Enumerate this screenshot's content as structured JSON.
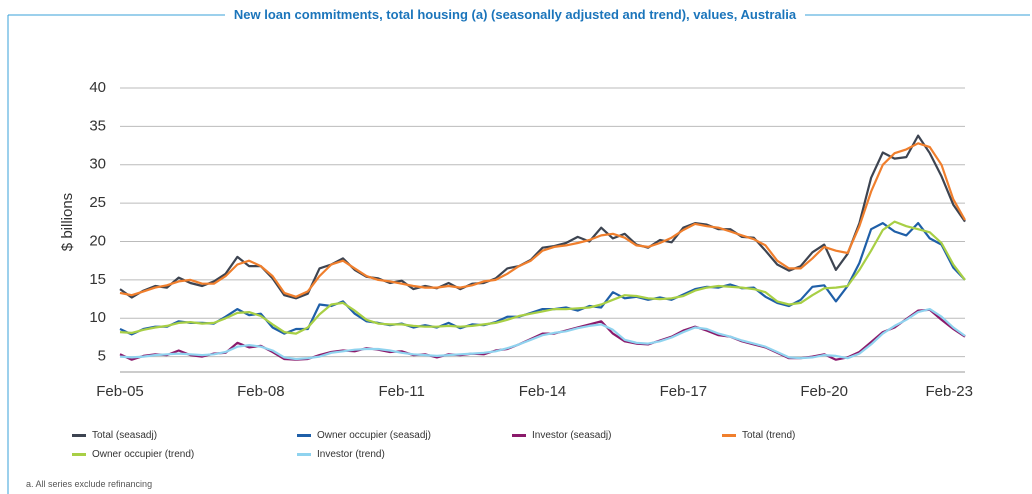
{
  "chart_data": {
    "type": "line",
    "title": "New loan commitments, total housing (a) (seasonally adjusted and trend), values, Australia",
    "y_label": "$ billions",
    "footnote": "a. All series exclude refinancing",
    "categories": [
      "Feb-05",
      null,
      null,
      null,
      null,
      null,
      null,
      null,
      null,
      null,
      null,
      null,
      "Feb-08",
      null,
      null,
      null,
      null,
      null,
      null,
      null,
      null,
      null,
      null,
      null,
      "Feb-11",
      null,
      null,
      null,
      null,
      null,
      null,
      null,
      null,
      null,
      null,
      null,
      "Feb-14",
      null,
      null,
      null,
      null,
      null,
      null,
      null,
      null,
      null,
      null,
      null,
      "Feb-17",
      null,
      null,
      null,
      null,
      null,
      null,
      null,
      null,
      null,
      null,
      null,
      "Feb-20",
      null,
      null,
      null,
      null,
      null,
      null,
      null,
      null,
      null,
      null,
      null,
      "Feb-23"
    ],
    "ylim": [
      3,
      40
    ],
    "yticks": [
      5,
      10,
      15,
      20,
      25,
      30,
      35,
      40
    ],
    "grid": true,
    "series": [
      {
        "name": "Total (seasadj)",
        "color": "#3d4451",
        "values": [
          13.8,
          12.7,
          13.6,
          14.2,
          14.0,
          15.3,
          14.6,
          14.2,
          14.8,
          15.8,
          18.0,
          16.8,
          16.8,
          15.2,
          13.0,
          12.6,
          13.2,
          16.5,
          17.0,
          17.8,
          16.3,
          15.4,
          15.2,
          14.6,
          14.9,
          13.8,
          14.2,
          13.9,
          14.6,
          13.8,
          14.5,
          14.6,
          15.2,
          16.5,
          16.8,
          17.6,
          19.2,
          19.4,
          19.8,
          20.6,
          20.0,
          21.8,
          20.4,
          21.0,
          19.6,
          19.2,
          20.2,
          19.9,
          21.8,
          22.4,
          22.2,
          21.6,
          21.6,
          20.6,
          20.5,
          18.8,
          17.0,
          16.2,
          16.8,
          18.6,
          19.6,
          16.3,
          18.4,
          22.4,
          28.3,
          31.6,
          30.8,
          31.0,
          33.8,
          31.5,
          28.5,
          24.8,
          22.6
        ]
      },
      {
        "name": "Owner occupier (seasadj)",
        "color": "#1f5fa8",
        "values": [
          8.6,
          7.9,
          8.6,
          8.9,
          8.9,
          9.6,
          9.4,
          9.4,
          9.3,
          10.2,
          11.2,
          10.4,
          10.6,
          8.8,
          8.0,
          8.6,
          8.6,
          11.8,
          11.6,
          12.2,
          10.6,
          9.6,
          9.4,
          9.1,
          9.3,
          8.8,
          9.1,
          8.8,
          9.4,
          8.7,
          9.2,
          9.1,
          9.5,
          10.2,
          10.2,
          10.7,
          11.2,
          11.2,
          11.4,
          11.0,
          11.6,
          11.4,
          13.4,
          12.6,
          12.8,
          12.4,
          12.7,
          12.4,
          13.1,
          13.8,
          14.1,
          14.0,
          14.4,
          13.9,
          14.0,
          12.8,
          12.0,
          11.6,
          12.4,
          14.1,
          14.3,
          12.2,
          14.2,
          17.2,
          21.6,
          22.4,
          21.3,
          20.8,
          22.4,
          20.4,
          19.6,
          16.6,
          15.0
        ]
      },
      {
        "name": "Investor (seasadj)",
        "color": "#8b1a6b",
        "values": [
          5.3,
          4.6,
          5.1,
          5.3,
          5.2,
          5.8,
          5.2,
          5.0,
          5.4,
          5.5,
          6.8,
          6.2,
          6.4,
          5.6,
          4.7,
          4.6,
          4.7,
          5.2,
          5.6,
          5.8,
          5.7,
          6.1,
          5.9,
          5.6,
          5.7,
          5.2,
          5.3,
          4.9,
          5.3,
          5.2,
          5.4,
          5.3,
          5.8,
          6.0,
          6.6,
          7.3,
          8.0,
          8.0,
          8.4,
          8.8,
          9.2,
          9.6,
          8.0,
          7.0,
          6.7,
          6.6,
          7.1,
          7.6,
          8.4,
          8.9,
          8.4,
          7.8,
          7.6,
          7.0,
          6.6,
          6.2,
          5.5,
          4.8,
          4.8,
          5.0,
          5.3,
          4.6,
          4.9,
          5.6,
          6.9,
          8.2,
          8.8,
          9.9,
          11.0,
          11.1,
          9.8,
          8.6,
          7.6
        ]
      },
      {
        "name": "Total (trend)",
        "color": "#f07f2d",
        "values": [
          13.3,
          13.0,
          13.5,
          14.0,
          14.3,
          14.8,
          15.0,
          14.5,
          14.5,
          15.5,
          17.0,
          17.5,
          16.8,
          15.5,
          13.3,
          12.8,
          13.5,
          15.5,
          17.0,
          17.5,
          16.5,
          15.5,
          15.0,
          14.8,
          14.5,
          14.2,
          14.0,
          14.0,
          14.2,
          14.0,
          14.3,
          14.8,
          15.0,
          15.8,
          16.8,
          17.5,
          18.8,
          19.3,
          19.5,
          19.8,
          20.2,
          20.8,
          21.0,
          20.5,
          19.5,
          19.3,
          19.8,
          20.5,
          21.5,
          22.3,
          22.0,
          21.8,
          21.3,
          20.8,
          20.3,
          19.5,
          17.5,
          16.5,
          16.5,
          17.8,
          19.3,
          18.8,
          18.5,
          22.0,
          26.5,
          30.0,
          31.5,
          32.0,
          32.8,
          32.3,
          30.0,
          25.5,
          22.8
        ]
      },
      {
        "name": "Owner occupier (trend)",
        "color": "#a8cf45",
        "values": [
          8.2,
          8.1,
          8.5,
          8.8,
          9.0,
          9.4,
          9.5,
          9.3,
          9.4,
          10.0,
          10.7,
          10.8,
          10.3,
          9.2,
          8.2,
          8.0,
          8.8,
          10.5,
          11.8,
          12.0,
          11.0,
          9.8,
          9.3,
          9.2,
          9.2,
          9.0,
          8.9,
          8.9,
          9.0,
          8.9,
          9.0,
          9.2,
          9.4,
          9.8,
          10.3,
          10.6,
          10.9,
          11.2,
          11.2,
          11.3,
          11.4,
          11.8,
          12.4,
          13.0,
          12.9,
          12.6,
          12.5,
          12.6,
          12.9,
          13.6,
          14.0,
          14.2,
          14.1,
          14.0,
          13.8,
          13.4,
          12.2,
          11.8,
          12.0,
          13.0,
          13.9,
          14.0,
          14.2,
          16.3,
          18.8,
          21.5,
          22.6,
          22.0,
          21.6,
          21.2,
          19.8,
          17.0,
          15.0
        ]
      },
      {
        "name": "Investor (trend)",
        "color": "#8fd3ef",
        "values": [
          5.0,
          4.9,
          5.0,
          5.2,
          5.3,
          5.4,
          5.3,
          5.2,
          5.3,
          5.6,
          6.3,
          6.5,
          6.3,
          5.8,
          4.9,
          4.7,
          4.8,
          5.0,
          5.5,
          5.7,
          5.9,
          6.0,
          6.0,
          5.8,
          5.5,
          5.3,
          5.2,
          5.1,
          5.2,
          5.3,
          5.4,
          5.5,
          5.7,
          6.1,
          6.6,
          7.2,
          7.8,
          8.1,
          8.3,
          8.7,
          9.0,
          9.2,
          8.5,
          7.2,
          6.8,
          6.7,
          7.0,
          7.5,
          8.2,
          8.8,
          8.6,
          8.0,
          7.6,
          7.1,
          6.7,
          6.3,
          5.6,
          4.9,
          4.8,
          4.9,
          5.2,
          5.1,
          4.8,
          5.4,
          6.6,
          8.0,
          9.0,
          9.8,
          10.8,
          11.2,
          10.2,
          8.8,
          7.7
        ]
      }
    ]
  }
}
